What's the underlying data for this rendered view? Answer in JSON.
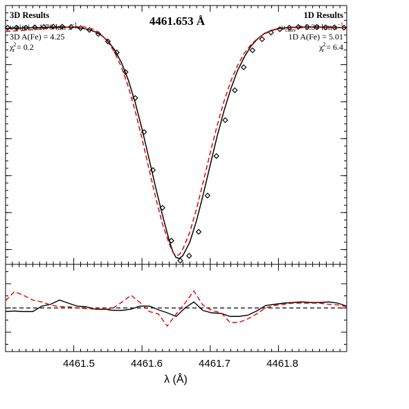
{
  "chart_data": [
    {
      "type": "line",
      "panel": "main",
      "title": "4461.653 Å",
      "xlabel": "λ (Å)",
      "ylabel": "",
      "xlim": [
        4461.4,
        4461.9
      ],
      "ylim": [
        0.36,
        1.06
      ],
      "grid": false,
      "annotations_left": {
        "heading": "3D Results",
        "line1": "υ sin i = 1.70 km s",
        "line1_sup": "−1",
        "line2": "3D A(Fe) = 4.25",
        "line3_pre": "χ",
        "line3_sub": "r",
        "line3_sup": "2",
        "line3_post": " = 0.2"
      },
      "annotations_right": {
        "heading": "1D Results",
        "line1_pre": "υ",
        "line1_sub": "conv",
        "line1_post": " = 5.39 km s",
        "line1_sup": "−1",
        "line2": "1D A(Fe) = 5.01",
        "line3_pre": "χ",
        "line3_sub": "r",
        "line3_sup": "2",
        "line3_post": " = 6.4"
      },
      "series": [
        {
          "style": "diamond-markers",
          "color": "#000000",
          "x": [
            4461.403,
            4461.416,
            4461.43,
            4461.443,
            4461.456,
            4461.47,
            4461.483,
            4461.496,
            4461.51,
            4461.523,
            4461.536,
            4461.55,
            4461.563,
            4461.576,
            4461.59,
            4461.603,
            4461.616,
            4461.63,
            4461.643,
            4461.656,
            4461.669,
            4461.683,
            4461.696,
            4461.709,
            4461.722,
            4461.736,
            4461.749,
            4461.762,
            4461.776,
            4461.789,
            4461.802,
            4461.816,
            4461.829,
            4461.842,
            4461.856,
            4461.869,
            4461.882,
            4461.896
          ],
          "y": [
            1.0,
            1.0,
            1.0,
            1.001,
            1.002,
            1.003,
            1.003,
            1.002,
            0.999,
            0.994,
            0.983,
            0.963,
            0.933,
            0.88,
            0.81,
            0.718,
            0.615,
            0.513,
            0.424,
            0.37,
            0.383,
            0.448,
            0.546,
            0.653,
            0.75,
            0.831,
            0.893,
            0.939,
            0.969,
            0.987,
            0.996,
            1.0,
            1.002,
            1.002,
            1.002,
            1.001,
            1.001,
            1.0
          ]
        },
        {
          "style": "solid",
          "color": "#000000",
          "label": "3D fit",
          "x": [
            4461.4,
            4461.42,
            4461.44,
            4461.46,
            4461.48,
            4461.5,
            4461.51,
            4461.52,
            4461.53,
            4461.54,
            4461.55,
            4461.56,
            4461.57,
            4461.58,
            4461.59,
            4461.6,
            4461.61,
            4461.62,
            4461.63,
            4461.64,
            4461.645,
            4461.65,
            4461.655,
            4461.66,
            4461.67,
            4461.68,
            4461.69,
            4461.7,
            4461.71,
            4461.72,
            4461.73,
            4461.74,
            4461.75,
            4461.76,
            4461.77,
            4461.78,
            4461.79,
            4461.8,
            4461.82,
            4461.84,
            4461.86,
            4461.88,
            4461.9
          ],
          "y": [
            0.998,
            0.999,
            1.0,
            1.001,
            1.002,
            1.001,
            0.999,
            0.996,
            0.99,
            0.98,
            0.964,
            0.94,
            0.905,
            0.858,
            0.798,
            0.726,
            0.648,
            0.568,
            0.493,
            0.424,
            0.395,
            0.378,
            0.376,
            0.384,
            0.42,
            0.479,
            0.551,
            0.629,
            0.706,
            0.774,
            0.834,
            0.884,
            0.921,
            0.951,
            0.971,
            0.985,
            0.993,
            0.998,
            1.001,
            1.002,
            1.002,
            1.001,
            1.0
          ]
        },
        {
          "style": "dashed",
          "color": "#dd0000",
          "label": "1D fit",
          "x": [
            4461.4,
            4461.42,
            4461.44,
            4461.46,
            4461.48,
            4461.5,
            4461.51,
            4461.52,
            4461.53,
            4461.54,
            4461.55,
            4461.56,
            4461.57,
            4461.58,
            4461.59,
            4461.6,
            4461.61,
            4461.62,
            4461.63,
            4461.64,
            4461.645,
            4461.65,
            4461.655,
            4461.66,
            4461.67,
            4461.68,
            4461.69,
            4461.7,
            4461.71,
            4461.72,
            4461.73,
            4461.74,
            4461.75,
            4461.76,
            4461.77,
            4461.78,
            4461.79,
            4461.8,
            4461.82,
            4461.84,
            4461.86,
            4461.88,
            4461.9
          ],
          "y": [
            0.99,
            0.992,
            0.995,
            0.998,
            1.0,
            1.002,
            1.003,
            1.001,
            0.995,
            0.982,
            0.962,
            0.933,
            0.893,
            0.84,
            0.775,
            0.7,
            0.62,
            0.541,
            0.469,
            0.415,
            0.393,
            0.383,
            0.387,
            0.402,
            0.447,
            0.511,
            0.585,
            0.662,
            0.735,
            0.8,
            0.855,
            0.898,
            0.931,
            0.955,
            0.972,
            0.984,
            0.992,
            0.997,
            1.0,
            1.001,
            1.001,
            1.001,
            1.0
          ]
        }
      ]
    },
    {
      "type": "line",
      "panel": "residuals",
      "xlabel": "λ (Å)",
      "xlim": [
        4461.4,
        4461.9
      ],
      "ylim": [
        -0.072,
        0.072
      ],
      "grid": false,
      "x_ticks": [
        "4461.5",
        "4461.6",
        "4461.7",
        "4461.8"
      ],
      "reference_line": {
        "y": 0.0,
        "style": "dashed",
        "color": "#000000"
      },
      "series": [
        {
          "style": "solid",
          "color": "#000000",
          "label": "3D residual",
          "x": [
            4461.4,
            4461.413,
            4461.426,
            4461.44,
            4461.453,
            4461.466,
            4461.479,
            4461.492,
            4461.505,
            4461.518,
            4461.532,
            4461.545,
            4461.558,
            4461.571,
            4461.584,
            4461.597,
            4461.611,
            4461.624,
            4461.637,
            4461.65,
            4461.663,
            4461.676,
            4461.689,
            4461.702,
            4461.716,
            4461.729,
            4461.742,
            4461.755,
            4461.768,
            4461.781,
            4461.794,
            4461.808,
            4461.821,
            4461.834,
            4461.847,
            4461.86,
            4461.874,
            4461.887,
            4461.9
          ],
          "y": [
            -0.006,
            -0.005,
            -0.006,
            -0.006,
            0.003,
            0.006,
            0.013,
            0.008,
            0.003,
            0.002,
            -0.002,
            -0.002,
            -0.004,
            -0.004,
            -0.002,
            0.003,
            0.003,
            -0.003,
            -0.008,
            -0.014,
            0.0,
            0.01,
            -0.004,
            -0.008,
            -0.009,
            -0.014,
            -0.014,
            -0.012,
            -0.005,
            0.004,
            0.006,
            0.008,
            0.009,
            0.01,
            0.009,
            0.009,
            0.01,
            0.008,
            0.003
          ]
        },
        {
          "style": "dashed",
          "color": "#dd0000",
          "label": "1D residual",
          "x": [
            4461.4,
            4461.413,
            4461.426,
            4461.44,
            4461.453,
            4461.466,
            4461.479,
            4461.492,
            4461.505,
            4461.518,
            4461.532,
            4461.545,
            4461.558,
            4461.571,
            4461.584,
            4461.597,
            4461.611,
            4461.624,
            4461.637,
            4461.65,
            4461.663,
            4461.676,
            4461.689,
            4461.702,
            4461.716,
            4461.729,
            4461.742,
            4461.755,
            4461.768,
            4461.781,
            4461.794,
            4461.808,
            4461.821,
            4461.834,
            4461.847,
            4461.86,
            4461.874,
            4461.887,
            4461.9
          ],
          "y": [
            0.012,
            0.027,
            0.021,
            0.013,
            0.01,
            0.005,
            0.002,
            0.002,
            0.0,
            -0.001,
            -0.002,
            -0.003,
            0.0,
            0.01,
            0.021,
            0.009,
            -0.006,
            -0.01,
            -0.03,
            -0.01,
            0.008,
            0.028,
            0.005,
            -0.004,
            -0.008,
            -0.024,
            -0.024,
            -0.018,
            -0.01,
            0.0,
            0.004,
            0.006,
            0.008,
            0.008,
            0.008,
            0.008,
            0.006,
            0.005,
            0.002
          ]
        }
      ]
    }
  ]
}
